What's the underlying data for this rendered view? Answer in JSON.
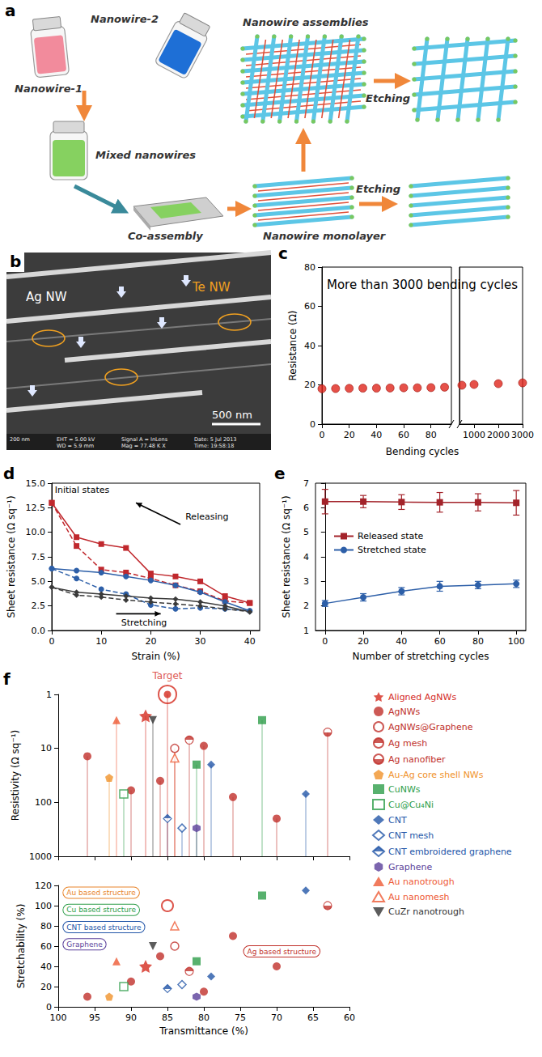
{
  "panels": [
    {
      "letter": "a",
      "texts": {
        "nanowire_1": "Nanowire-1",
        "nanowire_2": "Nanowire-2",
        "mixed": "Mixed nanowires",
        "co_assembly": "Co-assembly",
        "assemblies": "Nanowire assemblies",
        "etching_top": "Etching",
        "etching_bottom": "Etching",
        "monolayer": "Nanowire monolayer"
      }
    },
    {
      "letter": "b",
      "texts": {
        "ag": "Ag NW",
        "te": "Te NW",
        "scale_bar": "500 nm"
      },
      "info_bar": [
        "200 nm",
        "EHT = 5.00 kV",
        "WD = 5.9 mm",
        "Signal A = InLens",
        "Mag = 77.48 K X",
        "Date: 5 Jul 2013",
        "Time: 19:58:18"
      ]
    }
  ],
  "chart_data": [
    {
      "panel": "c",
      "type": "scatter",
      "title": "More than 3000 bending cycles",
      "x_label": "Bending cycles",
      "y_label": "Resistance (Ω)",
      "xlim": [
        [
          0,
          95
        ],
        [
          400,
          3000
        ]
      ],
      "xticks": [
        [
          0,
          20,
          40,
          60,
          80
        ],
        [
          1000,
          2000,
          3000
        ]
      ],
      "ylim": [
        0,
        80
      ],
      "yticks": [
        0,
        20,
        40,
        60,
        80
      ],
      "x": [
        0,
        10,
        20,
        30,
        40,
        50,
        60,
        70,
        80,
        90,
        500,
        1000,
        2000,
        3000
      ],
      "values": [
        18,
        18.1,
        18.2,
        18.3,
        18.3,
        18.4,
        18.5,
        18.5,
        18.6,
        18.8,
        19.8,
        20.2,
        20.6,
        21.0
      ],
      "color": "#e0261c",
      "marker": "circle"
    },
    {
      "panel": "d",
      "type": "line",
      "x_label": "Strain (%)",
      "y_label": "Sheet resistance (Ω sq⁻¹)",
      "xlim": [
        0,
        42
      ],
      "xticks": [
        0,
        10,
        20,
        30,
        40
      ],
      "ylim": [
        0,
        15
      ],
      "yticks": [
        {
          "value": 0,
          "label": "0.0"
        },
        {
          "value": 2.5,
          "label": "2.5"
        },
        {
          "value": 5,
          "label": "5.0"
        },
        {
          "value": 7.5,
          "label": "7.5"
        },
        {
          "value": 10,
          "label": "10.0"
        },
        {
          "value": 12.5,
          "label": "12.5"
        },
        {
          "value": 15,
          "label": "15.0"
        }
      ],
      "x": [
        0,
        5,
        10,
        15,
        20,
        25,
        30,
        35,
        40
      ],
      "series": [
        {
          "color": "#c0282d",
          "marker": "square",
          "line_style": "solid",
          "values": [
            13.0,
            9.5,
            8.8,
            8.4,
            5.8,
            5.5,
            5.0,
            3.5,
            2.8
          ]
        },
        {
          "color": "#c0282d",
          "marker": "square",
          "line_style": "dashed",
          "values": [
            13.0,
            8.6,
            6.2,
            5.9,
            5.3,
            4.6,
            4.0,
            3.0,
            2.8
          ]
        },
        {
          "color": "#2d5fa8",
          "marker": "circle",
          "line_style": "solid",
          "values": [
            6.3,
            6.1,
            5.9,
            5.5,
            5.1,
            4.6,
            3.9,
            2.9,
            2.0
          ]
        },
        {
          "color": "#2d5fa8",
          "marker": "circle",
          "line_style": "dashed",
          "values": [
            6.3,
            5.3,
            4.2,
            3.7,
            2.6,
            2.2,
            2.3,
            2.2,
            2.0
          ]
        },
        {
          "color": "#3a3a3a",
          "marker": "diamond",
          "line_style": "solid",
          "values": [
            4.4,
            3.9,
            3.7,
            3.5,
            3.3,
            3.2,
            2.9,
            2.5,
            1.9
          ]
        },
        {
          "color": "#3a3a3a",
          "marker": "diamond",
          "line_style": "dashed",
          "values": [
            4.4,
            3.6,
            3.4,
            3.1,
            2.9,
            2.7,
            2.5,
            2.2,
            1.9
          ]
        }
      ],
      "annotations": [
        "Initial states",
        "Releasing",
        "Stretching"
      ]
    },
    {
      "panel": "e",
      "type": "line",
      "x_label": "Number of stretching cycles",
      "y_label": "Sheet resistance (Ω sq⁻¹)",
      "xlim": [
        -5,
        105
      ],
      "xticks": [
        0,
        20,
        40,
        60,
        80,
        100
      ],
      "ylim": [
        1,
        7
      ],
      "yticks": [
        1,
        2,
        3,
        4,
        5,
        6,
        7
      ],
      "x": [
        0,
        20,
        40,
        60,
        80,
        100
      ],
      "legend": "left",
      "series": [
        {
          "name": "Released state",
          "color": "#a3232a",
          "marker": "square",
          "values": [
            6.25,
            6.25,
            6.23,
            6.22,
            6.22,
            6.2
          ],
          "errors": [
            0.5,
            0.25,
            0.3,
            0.4,
            0.35,
            0.5
          ]
        },
        {
          "name": "Stretched state",
          "color": "#2d5fa8",
          "marker": "circle",
          "values": [
            2.1,
            2.35,
            2.6,
            2.8,
            2.85,
            2.9
          ],
          "errors": [
            0.12,
            0.15,
            0.15,
            0.2,
            0.15,
            0.15
          ]
        }
      ]
    },
    {
      "panel": "f",
      "type": "scatter",
      "x_label": "Transmittance (%)",
      "y_label": "Resistivity (Ω sq⁻¹)",
      "z_label": "Stretchability (%)",
      "xlim": [
        100,
        60
      ],
      "xticks": [
        100,
        95,
        90,
        85,
        80,
        75,
        70,
        65,
        60
      ],
      "ylim": [
        1000,
        1
      ],
      "yticks": [
        1,
        10,
        100,
        1000
      ],
      "log": "y",
      "zlim": [
        0,
        120
      ],
      "zticks": [
        0,
        20,
        40,
        60,
        80,
        100,
        120
      ],
      "legend": "right",
      "target": {
        "label": "Target",
        "x": 85,
        "y": 1,
        "z": 100,
        "color": "#d42a1e"
      },
      "regions": [
        {
          "label": "Au based structure",
          "color": "#e8842a"
        },
        {
          "label": "Cu based structure",
          "color": "#2e9e4a"
        },
        {
          "label": "CNT based structure",
          "color": "#2356a8"
        },
        {
          "label": "Graphene",
          "color": "#5a3f9a"
        },
        {
          "label": "Ag based structure",
          "color": "#c0302a"
        }
      ],
      "series": [
        {
          "name": "Aligned AgNWs",
          "color": "#d42a1e",
          "marker": "star",
          "x": [
            88
          ],
          "y": [
            2.5
          ],
          "z": [
            40
          ]
        },
        {
          "name": "AgNWs",
          "color": "#c0302a",
          "marker": "circle",
          "x": [
            96,
            90,
            86,
            80,
            76,
            70
          ],
          "y": [
            14,
            60,
            40,
            9,
            80,
            200
          ],
          "z": [
            10,
            25,
            50,
            15,
            70,
            40
          ]
        },
        {
          "name": "AgNWs@Graphene",
          "color": "#c0302a",
          "marker": "open_circle",
          "x": [
            84
          ],
          "y": [
            10
          ],
          "z": [
            60
          ]
        },
        {
          "name": "Ag mesh",
          "color": "#c0302a",
          "marker": "half_circle",
          "x": [
            82
          ],
          "y": [
            7
          ],
          "z": [
            35
          ]
        },
        {
          "name": "Ag nanofiber",
          "color": "#c0302a",
          "marker": "half_circle_bottom",
          "x": [
            63
          ],
          "y": [
            5
          ],
          "z": [
            100
          ]
        },
        {
          "name": "Au-Ag core shell NWs",
          "color": "#f0922b",
          "marker": "pentagon",
          "x": [
            93
          ],
          "y": [
            35
          ],
          "z": [
            10
          ]
        },
        {
          "name": "CuNWs",
          "color": "#2e9e4a",
          "marker": "square",
          "x": [
            72,
            81
          ],
          "y": [
            3,
            20
          ],
          "z": [
            110,
            45
          ]
        },
        {
          "name": "Cu@Cu₄Ni",
          "color": "#2e9e4a",
          "marker": "open_square",
          "x": [
            91
          ],
          "y": [
            70
          ],
          "z": [
            20
          ]
        },
        {
          "name": "CNT",
          "color": "#2356a8",
          "marker": "diamond",
          "x": [
            79,
            66
          ],
          "y": [
            20,
            70
          ],
          "z": [
            30,
            115
          ]
        },
        {
          "name": "CNT mesh",
          "color": "#2356a8",
          "marker": "open_diamond",
          "x": [
            83
          ],
          "y": [
            300
          ],
          "z": [
            22
          ]
        },
        {
          "name": "CNT embroidered graphene",
          "color": "#2356a8",
          "marker": "half_diamond",
          "x": [
            85
          ],
          "y": [
            200
          ],
          "z": [
            18
          ]
        },
        {
          "name": "Graphene",
          "color": "#5a3f9a",
          "marker": "hexagon",
          "x": [
            81
          ],
          "y": [
            300
          ],
          "z": [
            10
          ]
        },
        {
          "name": "Au nanotrough",
          "color": "#ee5a35",
          "marker": "triangle",
          "x": [
            92
          ],
          "y": [
            3
          ],
          "z": [
            45
          ]
        },
        {
          "name": "Au nanomesh",
          "color": "#ee5a35",
          "marker": "open_triangle",
          "x": [
            84
          ],
          "y": [
            15
          ],
          "z": [
            80
          ]
        },
        {
          "name": "CuZr nanotrough",
          "color": "#333333",
          "marker": "triangle_down",
          "x": [
            87
          ],
          "y": [
            3
          ],
          "z": [
            60
          ]
        }
      ]
    }
  ]
}
